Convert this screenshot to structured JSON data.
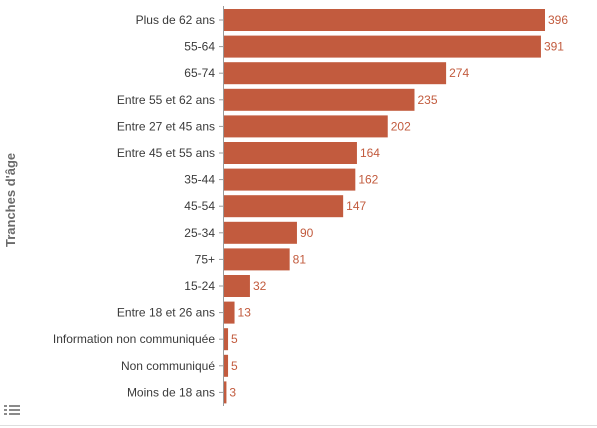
{
  "chart_data": {
    "type": "bar",
    "orientation": "horizontal",
    "title": "",
    "xlabel": "",
    "ylabel": "Tranches d'âge",
    "categories": [
      "Plus de 62 ans",
      "55-64",
      "65-74",
      "Entre 55 et 62 ans",
      "Entre 27 et 45 ans",
      "Entre 45 et 55 ans",
      "35-44",
      "45-54",
      "25-34",
      "75+",
      "15-24",
      "Entre 18 et 26 ans",
      "Information non communiquée",
      "Non communiqué",
      "Moins de 18 ans"
    ],
    "values": [
      396,
      391,
      274,
      235,
      202,
      164,
      162,
      147,
      90,
      81,
      32,
      13,
      5,
      5,
      3
    ],
    "xlim": [
      0,
      396
    ],
    "grid": false,
    "legend": "none",
    "colors": {
      "bar": "#c25b3e",
      "value_label": "#c25b3e",
      "category_label": "#3a3a3a",
      "axis_line": "#9a9a9a"
    }
  },
  "ui": {
    "legend_toggle_icon": "list-icon"
  }
}
